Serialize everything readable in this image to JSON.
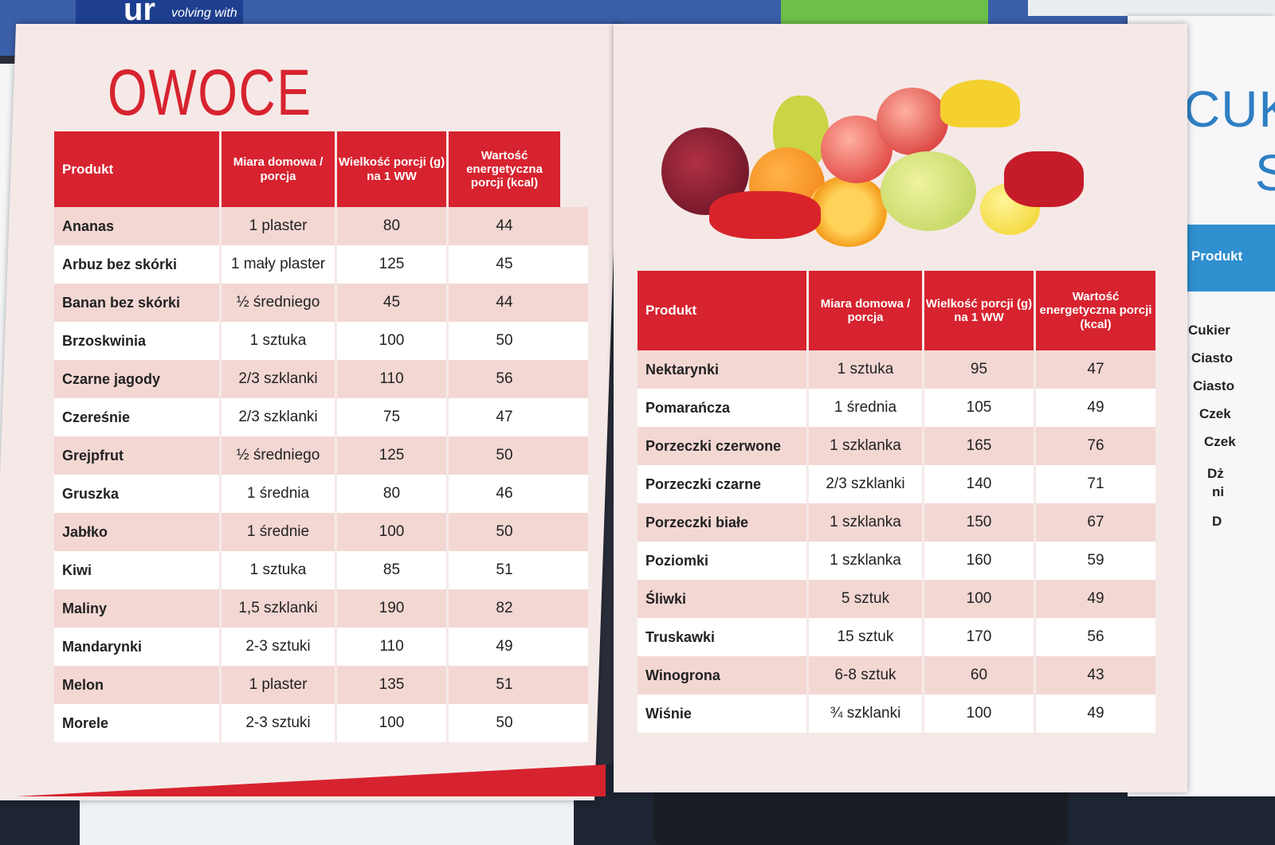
{
  "brand": {
    "logo": "ur",
    "tagline": "volving with you"
  },
  "left_page": {
    "title": "OWOCE",
    "headers": [
      "Produkt",
      "Miara domowa / porcja",
      "Wielkość porcji (g) na 1 WW",
      "Wartość energetyczna porcji (kcal)"
    ],
    "rows": [
      {
        "name": "Ananas",
        "measure": "1 plaster",
        "grams": "80",
        "kcal": "44"
      },
      {
        "name": "Arbuz bez skórki",
        "measure": "1 mały plaster",
        "grams": "125",
        "kcal": "45"
      },
      {
        "name": "Banan bez skórki",
        "measure": "½ średniego",
        "grams": "45",
        "kcal": "44"
      },
      {
        "name": "Brzoskwinia",
        "measure": "1 sztuka",
        "grams": "100",
        "kcal": "50"
      },
      {
        "name": "Czarne jagody",
        "measure": "2/3 szklanki",
        "grams": "110",
        "kcal": "56"
      },
      {
        "name": "Czereśnie",
        "measure": "2/3 szklanki",
        "grams": "75",
        "kcal": "47"
      },
      {
        "name": "Grejpfrut",
        "measure": "½ średniego",
        "grams": "125",
        "kcal": "50"
      },
      {
        "name": "Gruszka",
        "measure": "1 średnia",
        "grams": "80",
        "kcal": "46"
      },
      {
        "name": "Jabłko",
        "measure": "1 średnie",
        "grams": "100",
        "kcal": "50"
      },
      {
        "name": "Kiwi",
        "measure": "1 sztuka",
        "grams": "85",
        "kcal": "51"
      },
      {
        "name": "Maliny",
        "measure": "1,5 szklanki",
        "grams": "190",
        "kcal": "82"
      },
      {
        "name": "Mandarynki",
        "measure": "2-3 sztuki",
        "grams": "110",
        "kcal": "49"
      },
      {
        "name": "Melon",
        "measure": "1 plaster",
        "grams": "135",
        "kcal": "51"
      },
      {
        "name": "Morele",
        "measure": "2-3 sztuki",
        "grams": "100",
        "kcal": "50"
      }
    ]
  },
  "right_page": {
    "headers": [
      "Produkt",
      "Miara domowa / porcja",
      "Wielkość porcji (g) na 1 WW",
      "Wartość energetyczna porcji (kcal)"
    ],
    "rows": [
      {
        "name": "Nektarynki",
        "measure": "1 sztuka",
        "grams": "95",
        "kcal": "47"
      },
      {
        "name": "Pomarańcza",
        "measure": "1 średnia",
        "grams": "105",
        "kcal": "49"
      },
      {
        "name": "Porzeczki czerwone",
        "measure": "1 szklanka",
        "grams": "165",
        "kcal": "76"
      },
      {
        "name": "Porzeczki czarne",
        "measure": "2/3 szklanki",
        "grams": "140",
        "kcal": "71"
      },
      {
        "name": "Porzeczki białe",
        "measure": "1 szklanka",
        "grams": "150",
        "kcal": "67"
      },
      {
        "name": "Poziomki",
        "measure": "1 szklanka",
        "grams": "160",
        "kcal": "59"
      },
      {
        "name": "Śliwki",
        "measure": "5 sztuk",
        "grams": "100",
        "kcal": "49"
      },
      {
        "name": "Truskawki",
        "measure": "15 sztuk",
        "grams": "170",
        "kcal": "56"
      },
      {
        "name": "Winogrona",
        "measure": "6-8 sztuk",
        "grams": "60",
        "kcal": "43"
      },
      {
        "name": "Wiśnie",
        "measure": "¾ szklanki",
        "grams": "100",
        "kcal": "49"
      }
    ]
  },
  "edge_page": {
    "title": "CUK",
    "sub": "S",
    "header": "Produkt",
    "rows": [
      "Cukier",
      "Ciasto",
      "Ciasto",
      "Czek",
      "Czek",
      "Dż",
      "ni",
      "D"
    ]
  },
  "colors": {
    "accent_red": "#d7232f",
    "row_pink": "#f3d7d3",
    "page_bg": "#f5e9e8",
    "edge_blue": "#2f8fcf"
  }
}
